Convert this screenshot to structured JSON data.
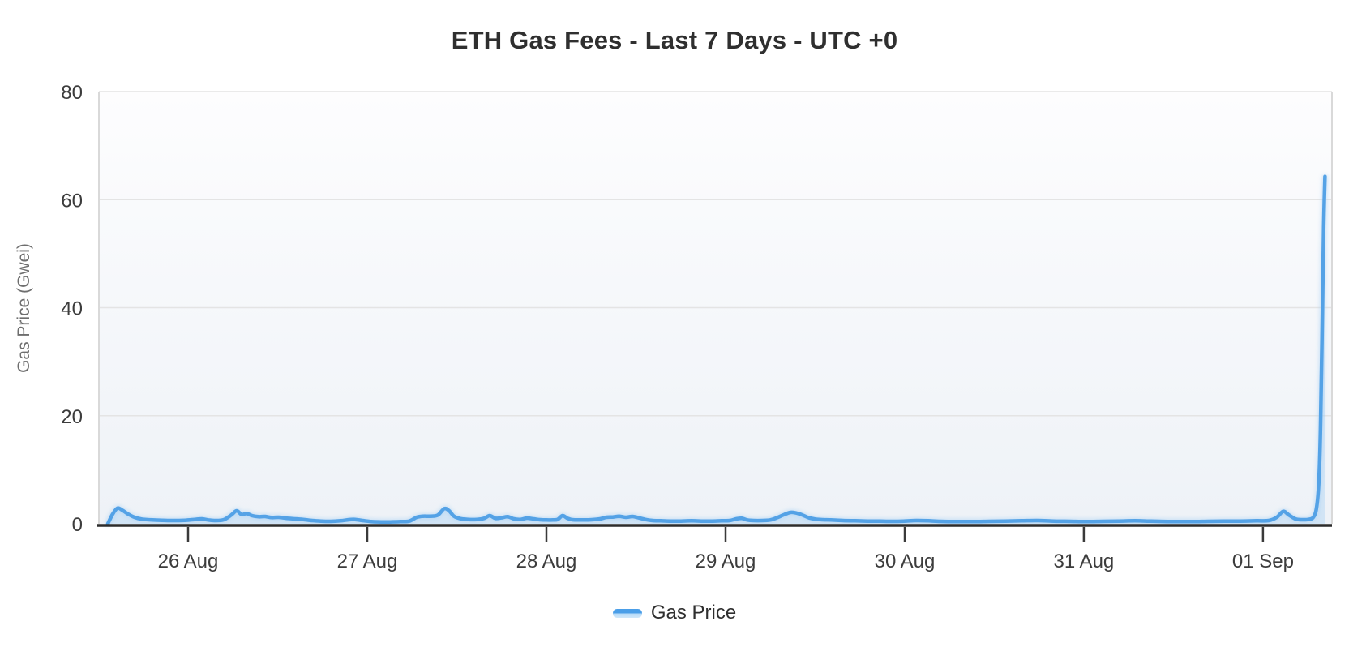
{
  "title": "ETH Gas Fees - Last 7 Days - UTC +0",
  "colors": {
    "accent_line": "#54a2e6",
    "area_fill": "rgba(150,199,243,0.32)",
    "gridline": "#e4e4e4",
    "plot_border": "#d9d9d9",
    "axis_line": "#2c2c2c",
    "tick_text": "#3c3c3c",
    "title_text": "#2f2f2f",
    "axis_title_text": "#6e6e6e"
  },
  "legend": {
    "position": "bottom",
    "entries": [
      "Gas Price"
    ]
  },
  "chart_data": {
    "type": "line",
    "title": "ETH Gas Fees - Last 7 Days - UTC +0",
    "xlabel": "",
    "ylabel": "Gas Price (Gwei)",
    "ylim": [
      0,
      80
    ],
    "y_ticks": [
      0,
      20,
      40,
      60,
      80
    ],
    "x_tick_labels": [
      "26 Aug",
      "27 Aug",
      "28 Aug",
      "29 Aug",
      "30 Aug",
      "31 Aug",
      "01 Sep"
    ],
    "x_range_days": [
      -0.498,
      6.385
    ],
    "grid": "horizontal-only",
    "legend_position": "bottom",
    "peak_value_gwei": 64.3,
    "series": [
      {
        "name": "Gas Price",
        "color": "#54a2e6",
        "points": [
          [
            -0.448,
            0
          ],
          [
            -0.421,
            1.8
          ],
          [
            -0.394,
            2.9
          ],
          [
            -0.367,
            2.5
          ],
          [
            -0.335,
            1.8
          ],
          [
            -0.299,
            1.2
          ],
          [
            -0.258,
            0.85
          ],
          [
            -0.199,
            0.7
          ],
          [
            -0.145,
            0.65
          ],
          [
            -0.086,
            0.6
          ],
          [
            -0.018,
            0.65
          ],
          [
            0.036,
            0.8
          ],
          [
            0.077,
            0.9
          ],
          [
            0.113,
            0.7
          ],
          [
            0.154,
            0.6
          ],
          [
            0.199,
            0.75
          ],
          [
            0.24,
            1.6
          ],
          [
            0.271,
            2.4
          ],
          [
            0.299,
            1.7
          ],
          [
            0.326,
            1.9
          ],
          [
            0.357,
            1.5
          ],
          [
            0.394,
            1.3
          ],
          [
            0.43,
            1.35
          ],
          [
            0.466,
            1.15
          ],
          [
            0.507,
            1.2
          ],
          [
            0.552,
            1.0
          ],
          [
            0.597,
            0.9
          ],
          [
            0.643,
            0.8
          ],
          [
            0.692,
            0.6
          ],
          [
            0.742,
            0.5
          ],
          [
            0.796,
            0.45
          ],
          [
            0.851,
            0.55
          ],
          [
            0.896,
            0.75
          ],
          [
            0.932,
            0.8
          ],
          [
            0.973,
            0.6
          ],
          [
            1.023,
            0.4
          ],
          [
            1.077,
            0.35
          ],
          [
            1.131,
            0.35
          ],
          [
            1.186,
            0.4
          ],
          [
            1.235,
            0.5
          ],
          [
            1.276,
            1.2
          ],
          [
            1.312,
            1.4
          ],
          [
            1.353,
            1.4
          ],
          [
            1.394,
            1.6
          ],
          [
            1.43,
            2.8
          ],
          [
            1.457,
            2.4
          ],
          [
            1.484,
            1.4
          ],
          [
            1.52,
            0.95
          ],
          [
            1.566,
            0.8
          ],
          [
            1.611,
            0.8
          ],
          [
            1.652,
            1.0
          ],
          [
            1.683,
            1.5
          ],
          [
            1.715,
            1.0
          ],
          [
            1.747,
            1.1
          ],
          [
            1.783,
            1.3
          ],
          [
            1.819,
            0.9
          ],
          [
            1.855,
            0.8
          ],
          [
            1.891,
            1.05
          ],
          [
            1.928,
            0.9
          ],
          [
            1.964,
            0.75
          ],
          [
            2.0,
            0.7
          ],
          [
            2.036,
            0.7
          ],
          [
            2.063,
            0.8
          ],
          [
            2.09,
            1.5
          ],
          [
            2.118,
            1.0
          ],
          [
            2.145,
            0.75
          ],
          [
            2.181,
            0.7
          ],
          [
            2.217,
            0.7
          ],
          [
            2.253,
            0.75
          ],
          [
            2.299,
            0.9
          ],
          [
            2.335,
            1.2
          ],
          [
            2.371,
            1.25
          ],
          [
            2.407,
            1.4
          ],
          [
            2.443,
            1.2
          ],
          [
            2.48,
            1.35
          ],
          [
            2.516,
            1.1
          ],
          [
            2.552,
            0.8
          ],
          [
            2.593,
            0.6
          ],
          [
            2.638,
            0.55
          ],
          [
            2.692,
            0.5
          ],
          [
            2.751,
            0.5
          ],
          [
            2.81,
            0.55
          ],
          [
            2.864,
            0.5
          ],
          [
            2.923,
            0.5
          ],
          [
            2.977,
            0.55
          ],
          [
            3.023,
            0.6
          ],
          [
            3.059,
            0.9
          ],
          [
            3.09,
            1.0
          ],
          [
            3.122,
            0.7
          ],
          [
            3.158,
            0.6
          ],
          [
            3.204,
            0.6
          ],
          [
            3.249,
            0.7
          ],
          [
            3.285,
            1.1
          ],
          [
            3.321,
            1.6
          ],
          [
            3.362,
            2.1
          ],
          [
            3.394,
            2.0
          ],
          [
            3.43,
            1.6
          ],
          [
            3.466,
            1.1
          ],
          [
            3.502,
            0.85
          ],
          [
            3.543,
            0.75
          ],
          [
            3.588,
            0.7
          ],
          [
            3.656,
            0.6
          ],
          [
            3.724,
            0.55
          ],
          [
            3.792,
            0.5
          ],
          [
            3.86,
            0.5
          ],
          [
            3.928,
            0.45
          ],
          [
            3.995,
            0.5
          ],
          [
            4.063,
            0.6
          ],
          [
            4.131,
            0.55
          ],
          [
            4.199,
            0.45
          ],
          [
            4.29,
            0.4
          ],
          [
            4.38,
            0.4
          ],
          [
            4.471,
            0.45
          ],
          [
            4.561,
            0.5
          ],
          [
            4.652,
            0.55
          ],
          [
            4.742,
            0.6
          ],
          [
            4.833,
            0.5
          ],
          [
            4.923,
            0.45
          ],
          [
            5.014,
            0.4
          ],
          [
            5.104,
            0.45
          ],
          [
            5.195,
            0.5
          ],
          [
            5.285,
            0.55
          ],
          [
            5.353,
            0.5
          ],
          [
            5.421,
            0.45
          ],
          [
            5.511,
            0.4
          ],
          [
            5.602,
            0.4
          ],
          [
            5.692,
            0.45
          ],
          [
            5.783,
            0.5
          ],
          [
            5.873,
            0.5
          ],
          [
            5.964,
            0.55
          ],
          [
            6.032,
            0.6
          ],
          [
            6.077,
            1.2
          ],
          [
            6.113,
            2.3
          ],
          [
            6.145,
            1.6
          ],
          [
            6.181,
            0.9
          ],
          [
            6.217,
            0.75
          ],
          [
            6.253,
            0.8
          ],
          [
            6.281,
            1.2
          ],
          [
            6.299,
            3.0
          ],
          [
            6.312,
            8.0
          ],
          [
            6.321,
            18.0
          ],
          [
            6.33,
            35.0
          ],
          [
            6.339,
            55.0
          ],
          [
            6.346,
            64.3
          ]
        ]
      }
    ]
  }
}
